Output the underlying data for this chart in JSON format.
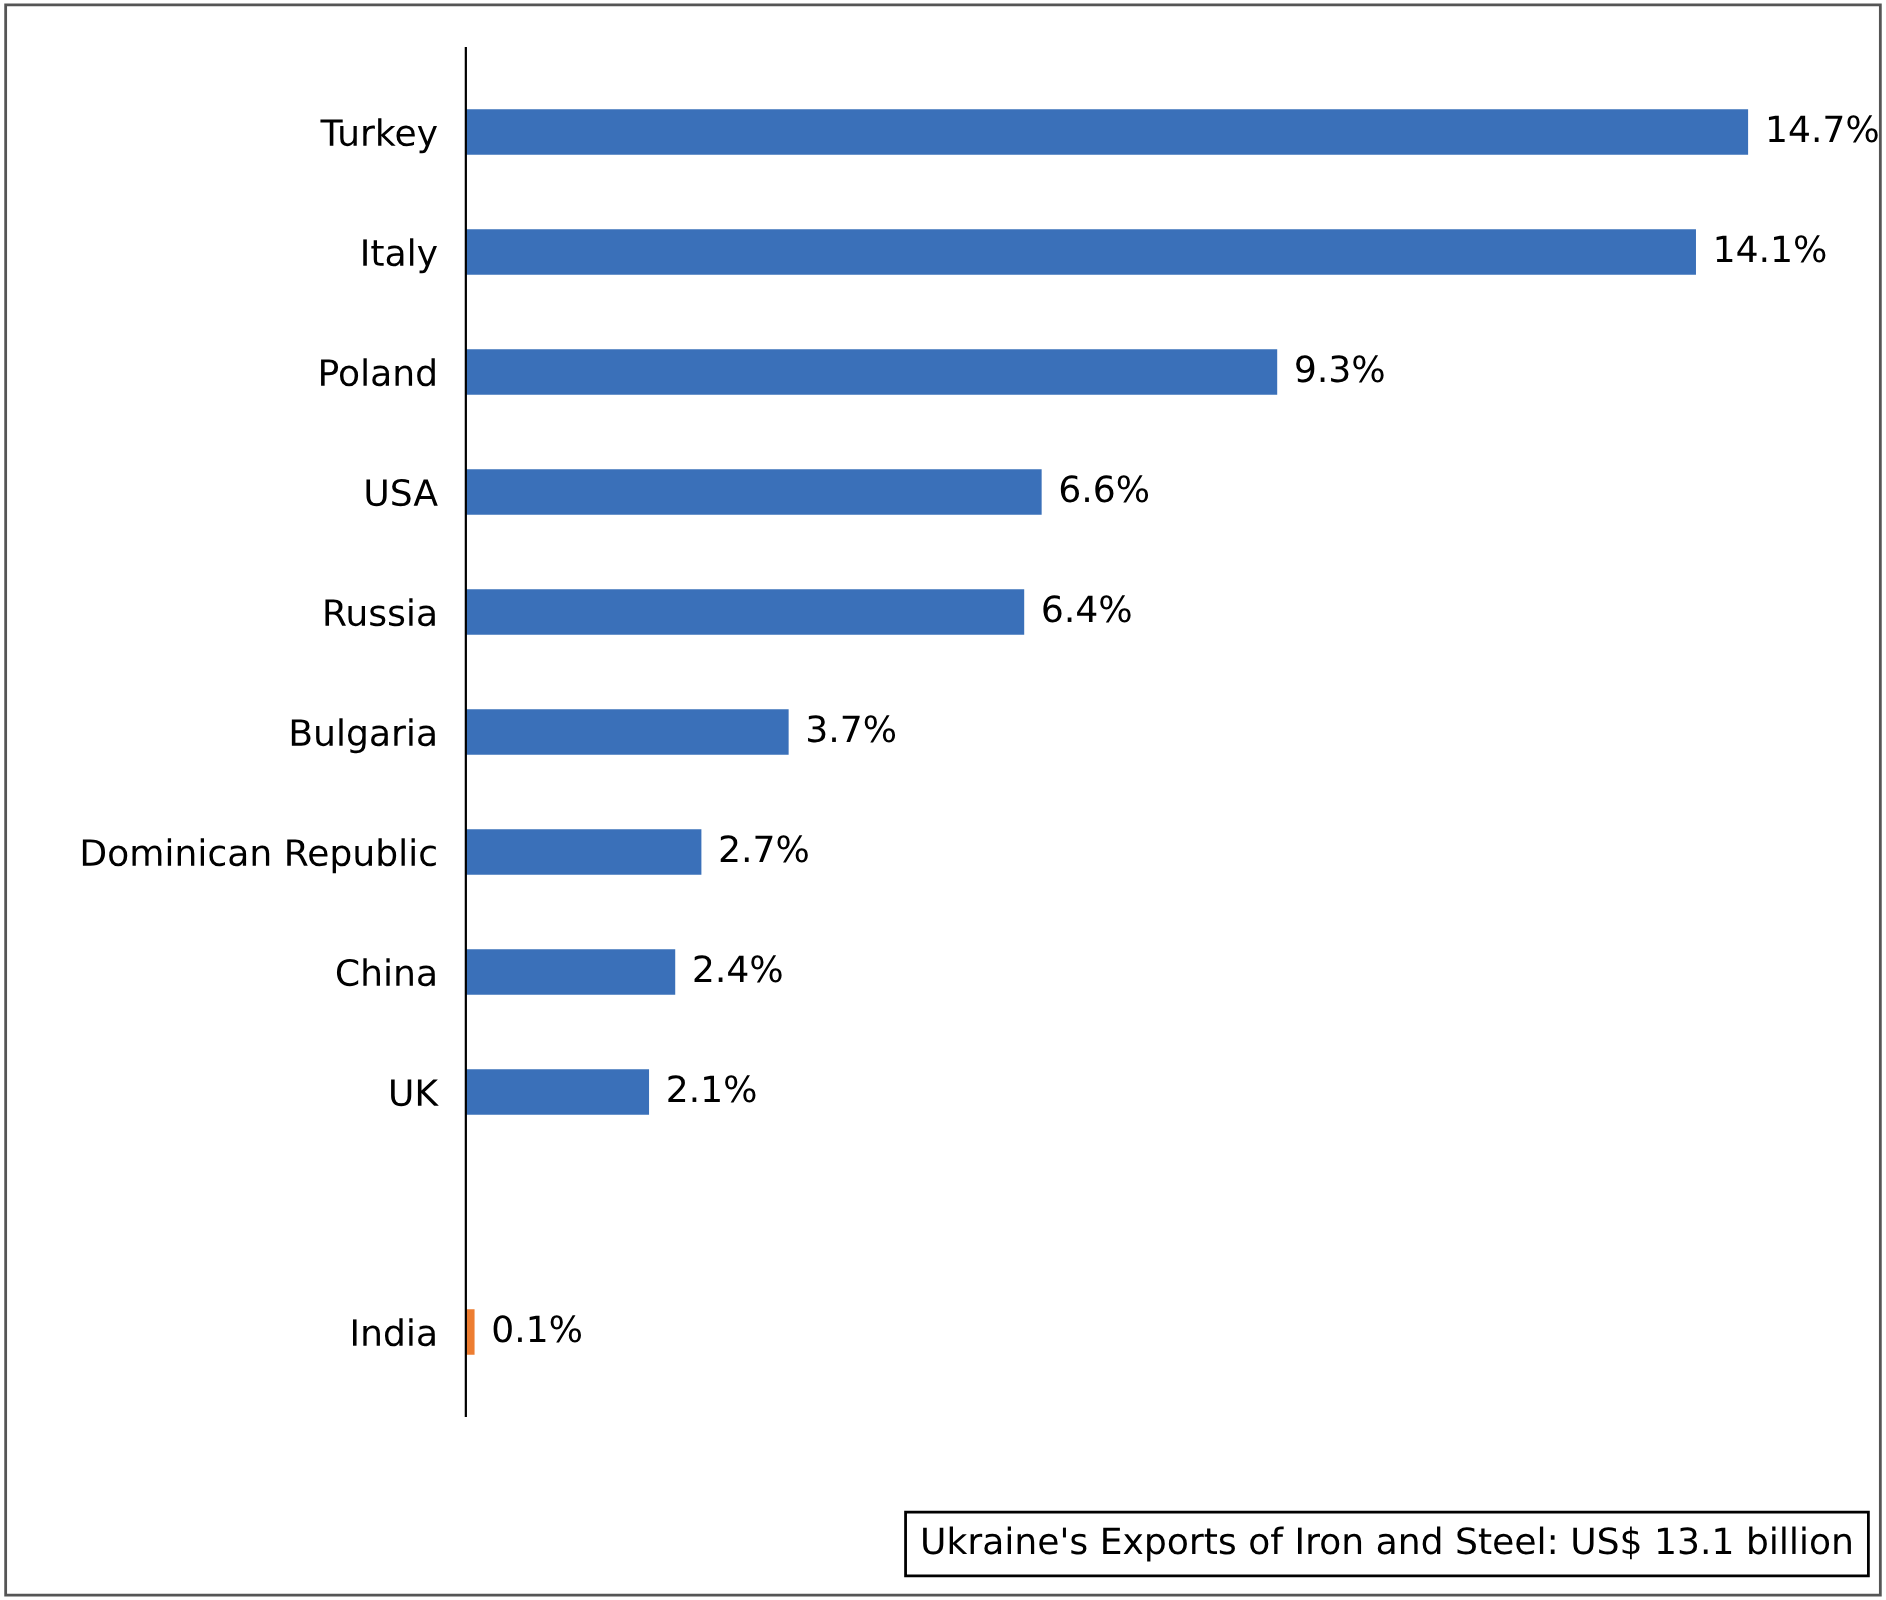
{
  "chart_data": {
    "type": "bar",
    "orientation": "horizontal",
    "categories": [
      "Turkey",
      "Italy",
      "Poland",
      "USA",
      "Russia",
      "Bulgaria",
      "Dominican Republic",
      "China",
      "UK",
      null,
      "India"
    ],
    "values": [
      14.7,
      14.1,
      9.3,
      6.6,
      6.4,
      3.7,
      2.7,
      2.4,
      2.1,
      null,
      0.1
    ],
    "colors": [
      "#3a70b9",
      "#3a70b9",
      "#3a70b9",
      "#3a70b9",
      "#3a70b9",
      "#3a70b9",
      "#3a70b9",
      "#3a70b9",
      "#3a70b9",
      "#3a70b9",
      "#ed7d31"
    ],
    "value_labels": [
      "14.7%",
      "14.1%",
      "9.3%",
      "6.6%",
      "6.4%",
      "3.7%",
      "2.7%",
      "2.4%",
      "2.1%",
      null,
      "0.1%"
    ],
    "annotations": [
      "Ukraine's Exports of Iron and Steel: US$ 13.1 billion"
    ],
    "grid": false,
    "legend": false
  }
}
